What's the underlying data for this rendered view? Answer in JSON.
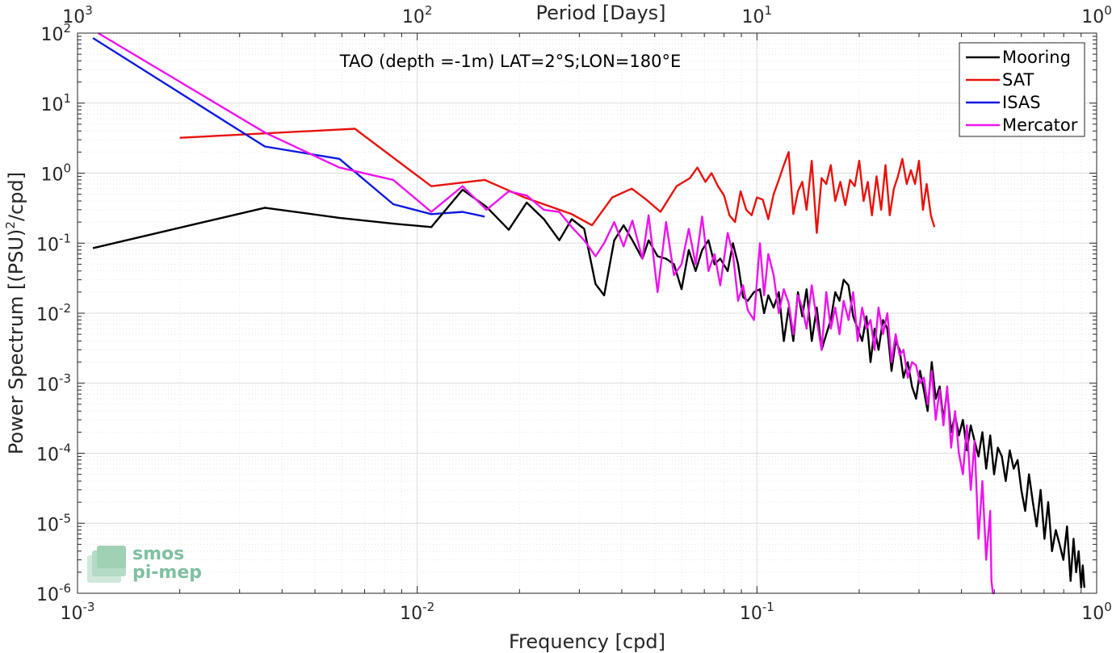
{
  "chart_data": {
    "type": "line",
    "title": "TAO (depth =-1m) LAT=2°S;LON=180°E",
    "xlabel": "Frequency [cpd]",
    "ylabel": "Power Spectrum [(PSU)",
    "ylabel_sup": "2",
    "ylabel_tail": "/cpd]",
    "top_xlabel": "Period [Days]",
    "x_scale": "log",
    "y_scale": "log",
    "xlim": [
      0.001,
      1
    ],
    "ylim": [
      1e-06,
      100
    ],
    "grid": true,
    "legend_position": "top-right",
    "x_ticks": [
      {
        "value": 0.001,
        "base": "10",
        "exp": "-3"
      },
      {
        "value": 0.01,
        "base": "10",
        "exp": "-2"
      },
      {
        "value": 0.1,
        "base": "10",
        "exp": "-1"
      },
      {
        "value": 1,
        "base": "10",
        "exp": "0"
      }
    ],
    "y_ticks": [
      {
        "value": 100,
        "base": "10",
        "exp": "2"
      },
      {
        "value": 10,
        "base": "10",
        "exp": "1"
      },
      {
        "value": 1,
        "base": "10",
        "exp": "0"
      },
      {
        "value": 0.1,
        "base": "10",
        "exp": "-1"
      },
      {
        "value": 0.01,
        "base": "10",
        "exp": "-2"
      },
      {
        "value": 0.001,
        "base": "10",
        "exp": "-3"
      },
      {
        "value": 0.0001,
        "base": "10",
        "exp": "-4"
      },
      {
        "value": 1e-05,
        "base": "10",
        "exp": "-5"
      },
      {
        "value": 1e-06,
        "base": "10",
        "exp": "-6"
      }
    ],
    "top_ticks": [
      {
        "value": 0.001,
        "base": "10",
        "exp": "3"
      },
      {
        "value": 0.01,
        "base": "10",
        "exp": "2"
      },
      {
        "value": 0.1,
        "base": "10",
        "exp": "1"
      },
      {
        "value": 1,
        "base": "10",
        "exp": "0"
      }
    ],
    "series": [
      {
        "name": "Mooring",
        "color": "#000000",
        "x": [
          0.00111,
          0.00356,
          0.0059,
          0.0085,
          0.011,
          0.0136,
          0.016,
          0.0186,
          0.021,
          0.0236,
          0.0262,
          0.0285,
          0.031,
          0.0335,
          0.0355,
          0.038,
          0.0405,
          0.043,
          0.046,
          0.048,
          0.051,
          0.054,
          0.057,
          0.06,
          0.063,
          0.066,
          0.069,
          0.072,
          0.075,
          0.078,
          0.082,
          0.085,
          0.088,
          0.091,
          0.094,
          0.098,
          0.102,
          0.105,
          0.108,
          0.112,
          0.116,
          0.12,
          0.124,
          0.128,
          0.132,
          0.136,
          0.14,
          0.145,
          0.15,
          0.155,
          0.16,
          0.165,
          0.17,
          0.175,
          0.18,
          0.186,
          0.192,
          0.198,
          0.204,
          0.21,
          0.216,
          0.222,
          0.228,
          0.235,
          0.242,
          0.249,
          0.256,
          0.263,
          0.27,
          0.278,
          0.286,
          0.294,
          0.302,
          0.31,
          0.318,
          0.327,
          0.336,
          0.345,
          0.354,
          0.363,
          0.373,
          0.383,
          0.393,
          0.404,
          0.415,
          0.426,
          0.437,
          0.449,
          0.461,
          0.473,
          0.486,
          0.499,
          0.512,
          0.526,
          0.54,
          0.555,
          0.57,
          0.585,
          0.6,
          0.616,
          0.632,
          0.649,
          0.666,
          0.684,
          0.702,
          0.72,
          0.739,
          0.758,
          0.778,
          0.798,
          0.818,
          0.838,
          0.855,
          0.87,
          0.885,
          0.9,
          0.91,
          0.92
        ],
        "y": [
          0.085,
          0.32,
          0.23,
          0.19,
          0.17,
          0.58,
          0.33,
          0.155,
          0.38,
          0.22,
          0.11,
          0.22,
          0.16,
          0.026,
          0.018,
          0.11,
          0.18,
          0.11,
          0.06,
          0.11,
          0.065,
          0.06,
          0.05,
          0.022,
          0.08,
          0.04,
          0.08,
          0.11,
          0.05,
          0.06,
          0.04,
          0.1,
          0.05,
          0.017,
          0.015,
          0.02,
          0.022,
          0.01,
          0.018,
          0.012,
          0.02,
          0.004,
          0.012,
          0.004,
          0.02,
          0.009,
          0.022,
          0.004,
          0.012,
          0.003,
          0.005,
          0.008,
          0.02,
          0.015,
          0.03,
          0.025,
          0.009,
          0.006,
          0.004,
          0.009,
          0.002,
          0.006,
          0.003,
          0.008,
          0.006,
          0.0015,
          0.004,
          0.003,
          0.0012,
          0.002,
          0.0009,
          0.0006,
          0.0015,
          0.0008,
          0.0004,
          0.002,
          0.0006,
          0.0009,
          0.0003,
          0.0008,
          0.0002,
          0.00035,
          0.00018,
          0.0003,
          0.00011,
          0.00025,
          0.00015,
          9e-05,
          0.0002,
          6e-05,
          0.00018,
          5e-05,
          0.00012,
          9e-05,
          4e-05,
          0.00011,
          6e-05,
          8e-05,
          3e-05,
          1.5e-05,
          5e-05,
          2e-05,
          9e-06,
          3e-05,
          6e-06,
          2e-05,
          4e-06,
          8e-06,
          5e-06,
          3e-06,
          9e-06,
          1.5e-06,
          6e-06,
          2e-06,
          4e-06,
          1.2e-06,
          2.5e-06,
          1.2e-06
        ]
      },
      {
        "name": "SAT",
        "color": "#e8120c",
        "x": [
          0.002,
          0.00655,
          0.011,
          0.0158,
          0.0207,
          0.0285,
          0.0327,
          0.0375,
          0.0428,
          0.0472,
          0.052,
          0.058,
          0.0635,
          0.0668,
          0.0705,
          0.0735,
          0.0768,
          0.08,
          0.083,
          0.0862,
          0.0895,
          0.093,
          0.0965,
          0.1,
          0.104,
          0.108,
          0.112,
          0.116,
          0.12,
          0.124,
          0.128,
          0.132,
          0.136,
          0.14,
          0.145,
          0.15,
          0.155,
          0.16,
          0.165,
          0.17,
          0.176,
          0.182,
          0.188,
          0.194,
          0.2,
          0.206,
          0.212,
          0.218,
          0.225,
          0.232,
          0.239,
          0.246,
          0.253,
          0.26,
          0.268,
          0.276,
          0.284,
          0.292,
          0.3,
          0.308,
          0.316,
          0.325,
          0.333
        ],
        "y": [
          3.2,
          4.3,
          0.65,
          0.8,
          0.45,
          0.26,
          0.18,
          0.45,
          0.6,
          0.42,
          0.28,
          0.65,
          0.85,
          1.2,
          0.75,
          1.0,
          0.65,
          0.48,
          0.25,
          0.2,
          0.55,
          0.3,
          0.25,
          0.45,
          0.42,
          0.22,
          0.5,
          0.8,
          1.3,
          2.0,
          0.26,
          0.55,
          0.75,
          0.3,
          1.5,
          0.14,
          0.85,
          0.7,
          1.3,
          0.4,
          0.75,
          0.35,
          0.8,
          0.65,
          1.5,
          0.4,
          0.75,
          0.25,
          0.9,
          0.3,
          1.3,
          0.25,
          0.6,
          0.9,
          1.6,
          0.7,
          1.1,
          0.7,
          1.5,
          0.3,
          0.7,
          0.25,
          0.17
        ]
      },
      {
        "name": "ISAS",
        "color": "#0b1ae0",
        "x": [
          0.00111,
          0.00356,
          0.0059,
          0.0085,
          0.011,
          0.0136,
          0.0158
        ],
        "y": [
          85,
          2.4,
          1.6,
          0.36,
          0.26,
          0.28,
          0.24
        ]
      },
      {
        "name": "Mercator",
        "color": "#ee12ee",
        "x": [
          0.00115,
          0.00356,
          0.0059,
          0.0085,
          0.011,
          0.0136,
          0.016,
          0.0186,
          0.021,
          0.0236,
          0.0262,
          0.0285,
          0.031,
          0.0335,
          0.0355,
          0.038,
          0.0405,
          0.043,
          0.046,
          0.048,
          0.051,
          0.054,
          0.057,
          0.06,
          0.063,
          0.066,
          0.069,
          0.072,
          0.075,
          0.078,
          0.082,
          0.085,
          0.088,
          0.091,
          0.094,
          0.098,
          0.102,
          0.105,
          0.108,
          0.112,
          0.116,
          0.12,
          0.124,
          0.128,
          0.132,
          0.136,
          0.14,
          0.145,
          0.15,
          0.155,
          0.16,
          0.165,
          0.17,
          0.175,
          0.18,
          0.186,
          0.192,
          0.198,
          0.204,
          0.21,
          0.216,
          0.222,
          0.228,
          0.235,
          0.242,
          0.249,
          0.256,
          0.263,
          0.27,
          0.278,
          0.286,
          0.294,
          0.302,
          0.31,
          0.318,
          0.327,
          0.336,
          0.345,
          0.354,
          0.363,
          0.373,
          0.383,
          0.393,
          0.404,
          0.415,
          0.426,
          0.437,
          0.449,
          0.461,
          0.473,
          0.486,
          0.49,
          0.495,
          0.5
        ],
        "y": [
          100,
          3.8,
          1.2,
          0.8,
          0.28,
          0.65,
          0.3,
          0.55,
          0.48,
          0.3,
          0.28,
          0.17,
          0.11,
          0.065,
          0.1,
          0.2,
          0.09,
          0.21,
          0.06,
          0.25,
          0.02,
          0.2,
          0.035,
          0.05,
          0.16,
          0.05,
          0.24,
          0.04,
          0.07,
          0.025,
          0.14,
          0.07,
          0.015,
          0.025,
          0.011,
          0.008,
          0.1,
          0.018,
          0.07,
          0.035,
          0.01,
          0.022,
          0.014,
          0.005,
          0.018,
          0.012,
          0.006,
          0.025,
          0.008,
          0.003,
          0.02,
          0.006,
          0.012,
          0.005,
          0.015,
          0.008,
          0.02,
          0.004,
          0.012,
          0.006,
          0.008,
          0.003,
          0.012,
          0.005,
          0.01,
          0.002,
          0.005,
          0.0025,
          0.003,
          0.0012,
          0.002,
          0.0018,
          0.001,
          0.0012,
          0.0005,
          0.0015,
          0.0003,
          0.0008,
          0.00025,
          0.0009,
          0.00012,
          0.0004,
          0.0001,
          5e-05,
          0.00025,
          3e-05,
          0.00015,
          6e-06,
          4e-05,
          3e-06,
          1.5e-05,
          1.5e-06,
          8e-07,
          5e-08
        ]
      }
    ]
  },
  "watermark": {
    "line1": "smos",
    "line2": "pi-mep",
    "color": "#7fc0a0"
  }
}
